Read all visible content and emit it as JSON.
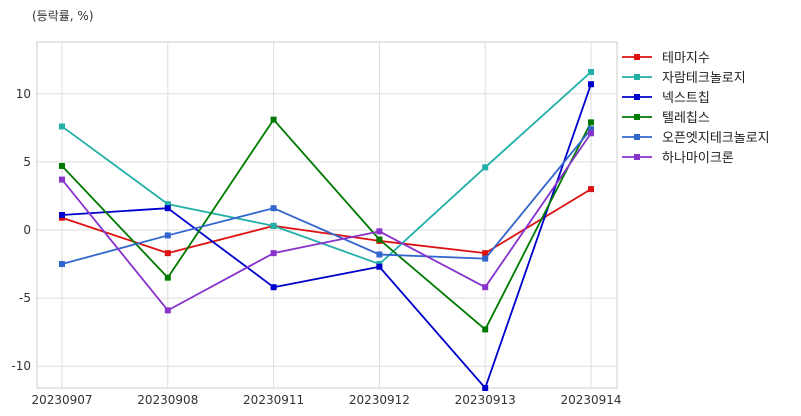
{
  "chart_data": {
    "type": "line",
    "unit_label": "(등락률, %)",
    "categories": [
      "20230907",
      "20230908",
      "20230911",
      "20230912",
      "20230913",
      "20230914"
    ],
    "ylim": [
      -11.6,
      13.8
    ],
    "yticks": [
      -10,
      -5,
      0,
      5,
      10
    ],
    "grid": true,
    "legend_position": "right",
    "series": [
      {
        "name": "테마지수",
        "color": "#dd1111",
        "values": [
          0.9,
          -1.7,
          0.3,
          -0.8,
          -1.7,
          3.0
        ]
      },
      {
        "name": "자람테크놀로지",
        "color": "#22b0a8",
        "values": [
          7.6,
          1.9,
          0.3,
          -2.5,
          4.6,
          11.6
        ]
      },
      {
        "name": "넥스트칩",
        "color": "#0000cc",
        "values": [
          1.1,
          1.6,
          -4.2,
          -2.7,
          -11.6,
          10.7
        ]
      },
      {
        "name": "텔레칩스",
        "color": "#007a00",
        "values": [
          4.7,
          -3.5,
          8.1,
          -0.7,
          -7.3,
          7.9
        ]
      },
      {
        "name": "오픈엣지테크놀로지",
        "color": "#3366cc",
        "values": [
          -2.5,
          -0.4,
          1.6,
          -1.8,
          -2.1,
          7.4
        ]
      },
      {
        "name": "하나마이크론",
        "color": "#8833cc",
        "values": [
          3.7,
          -5.9,
          -1.7,
          -0.1,
          -4.2,
          7.1
        ]
      }
    ]
  }
}
